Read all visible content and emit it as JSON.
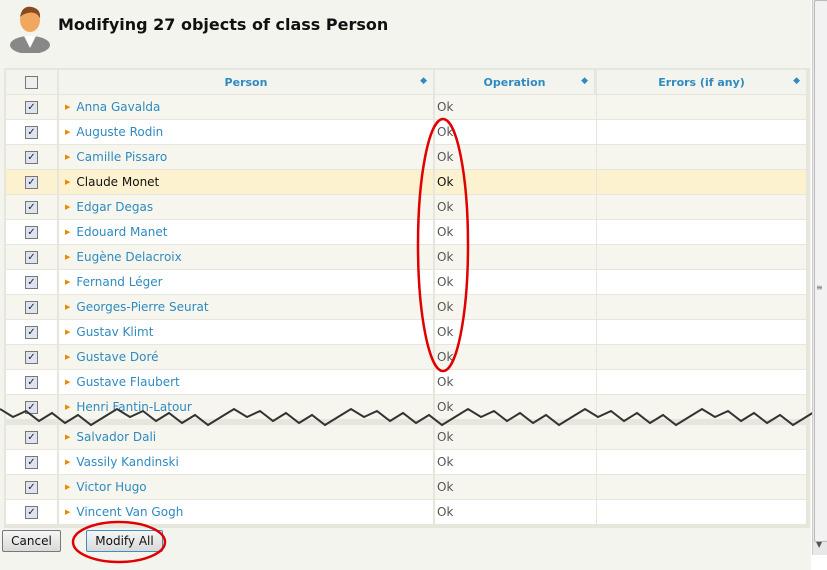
{
  "title": "Modifying 27 objects of class Person",
  "columns": {
    "person": "Person",
    "operation": "Operation",
    "errors": "Errors (if any)"
  },
  "rows_top": [
    {
      "name": "Anna Gavalda",
      "op": "Ok",
      "checked": true
    },
    {
      "name": "Auguste Rodin",
      "op": "Ok",
      "checked": true
    },
    {
      "name": "Camille Pissaro",
      "op": "Ok",
      "checked": true
    },
    {
      "name": "Claude Monet",
      "op": "Ok",
      "checked": true,
      "highlighted": true
    },
    {
      "name": "Edgar Degas",
      "op": "Ok",
      "checked": true
    },
    {
      "name": "Edouard Manet",
      "op": "Ok",
      "checked": true
    },
    {
      "name": "Eugène Delacroix",
      "op": "Ok",
      "checked": true
    },
    {
      "name": "Fernand Léger",
      "op": "Ok",
      "checked": true
    },
    {
      "name": "Georges-Pierre Seurat",
      "op": "Ok",
      "checked": true
    },
    {
      "name": "Gustav Klimt",
      "op": "Ok",
      "checked": true
    },
    {
      "name": "Gustave Doré",
      "op": "Ok",
      "checked": true
    },
    {
      "name": "Gustave Flaubert",
      "op": "Ok",
      "checked": true
    },
    {
      "name": "Henri Fantin-Latour",
      "op": "Ok",
      "checked": true
    }
  ],
  "rows_bottom": [
    {
      "name": "Salvador Dali",
      "op": "Ok",
      "checked": true
    },
    {
      "name": "Vassily Kandinski",
      "op": "Ok",
      "checked": true
    },
    {
      "name": "Victor Hugo",
      "op": "Ok",
      "checked": true
    },
    {
      "name": "Vincent Van Gogh",
      "op": "Ok",
      "checked": true
    }
  ],
  "buttons": {
    "cancel": "Cancel",
    "modify_all": "Modify All"
  },
  "colors": {
    "link": "#2e8bc0",
    "highlight_row": "#fcf2cf",
    "annotation": "#e00000"
  }
}
